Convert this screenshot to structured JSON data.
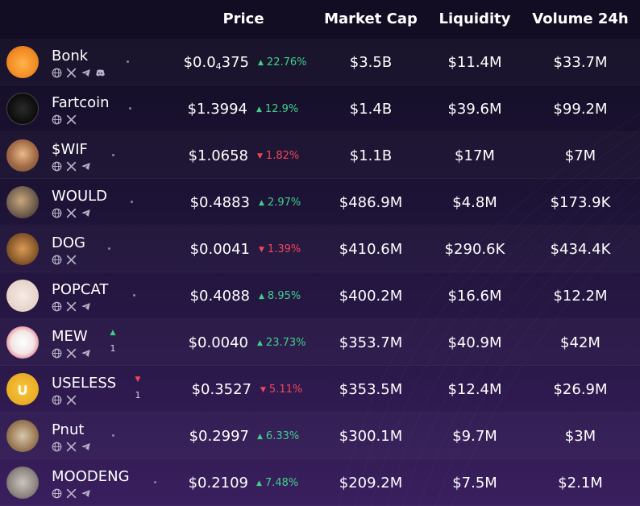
{
  "headers": {
    "price": "Price",
    "market_cap": "Market Cap",
    "liquidity": "Liquidity",
    "volume": "Volume 24h"
  },
  "colors": {
    "up": "#3fd18a",
    "down": "#f0475b",
    "bg": "#120d22"
  },
  "rows": [
    {
      "name": "Bonk",
      "price": "$0.0",
      "price_sub": "4",
      "price_rest": "375",
      "change": "22.76%",
      "dir": "up",
      "market_cap": "$3.5B",
      "liquidity": "$11.4M",
      "volume": "$33.7M",
      "socials": [
        "globe-icon",
        "x-icon",
        "telegram-icon",
        "discord-icon"
      ],
      "trend": "",
      "trend_count": ""
    },
    {
      "name": "Fartcoin",
      "price": "$1.3994",
      "price_sub": "",
      "price_rest": "",
      "change": "12.9%",
      "dir": "up",
      "market_cap": "$1.4B",
      "liquidity": "$39.6M",
      "volume": "$99.2M",
      "socials": [
        "globe-icon",
        "x-icon"
      ],
      "trend": "",
      "trend_count": ""
    },
    {
      "name": "$WIF",
      "price": "$1.0658",
      "price_sub": "",
      "price_rest": "",
      "change": "1.82%",
      "dir": "down",
      "market_cap": "$1.1B",
      "liquidity": "$17M",
      "volume": "$7M",
      "socials": [
        "globe-icon",
        "x-icon",
        "telegram-icon"
      ],
      "trend": "",
      "trend_count": ""
    },
    {
      "name": "WOULD",
      "price": "$0.4883",
      "price_sub": "",
      "price_rest": "",
      "change": "2.97%",
      "dir": "up",
      "market_cap": "$486.9M",
      "liquidity": "$4.8M",
      "volume": "$173.9K",
      "socials": [
        "globe-icon",
        "x-icon",
        "telegram-icon"
      ],
      "trend": "",
      "trend_count": ""
    },
    {
      "name": "DOG",
      "price": "$0.0041",
      "price_sub": "",
      "price_rest": "",
      "change": "1.39%",
      "dir": "down",
      "market_cap": "$410.6M",
      "liquidity": "$290.6K",
      "volume": "$434.4K",
      "socials": [
        "globe-icon",
        "x-icon"
      ],
      "trend": "",
      "trend_count": ""
    },
    {
      "name": "POPCAT",
      "price": "$0.4088",
      "price_sub": "",
      "price_rest": "",
      "change": "8.95%",
      "dir": "up",
      "market_cap": "$400.2M",
      "liquidity": "$16.6M",
      "volume": "$12.2M",
      "socials": [
        "globe-icon",
        "x-icon",
        "telegram-icon"
      ],
      "trend": "",
      "trend_count": ""
    },
    {
      "name": "MEW",
      "price": "$0.0040",
      "price_sub": "",
      "price_rest": "",
      "change": "23.73%",
      "dir": "up",
      "market_cap": "$353.7M",
      "liquidity": "$40.9M",
      "volume": "$42M",
      "socials": [
        "globe-icon",
        "x-icon",
        "telegram-icon"
      ],
      "trend": "up",
      "trend_count": "1"
    },
    {
      "name": "USELESS",
      "price": "$0.3527",
      "price_sub": "",
      "price_rest": "",
      "change": "5.11%",
      "dir": "down",
      "market_cap": "$353.5M",
      "liquidity": "$12.4M",
      "volume": "$26.9M",
      "socials": [
        "globe-icon",
        "x-icon"
      ],
      "trend": "down",
      "trend_count": "1"
    },
    {
      "name": "Pnut",
      "price": "$0.2997",
      "price_sub": "",
      "price_rest": "",
      "change": "6.33%",
      "dir": "up",
      "market_cap": "$300.1M",
      "liquidity": "$9.7M",
      "volume": "$3M",
      "socials": [
        "globe-icon",
        "x-icon",
        "telegram-icon"
      ],
      "trend": "",
      "trend_count": ""
    },
    {
      "name": "MOODENG",
      "price": "$0.2109",
      "price_sub": "",
      "price_rest": "",
      "change": "7.48%",
      "dir": "up",
      "market_cap": "$209.2M",
      "liquidity": "$7.5M",
      "volume": "$2.1M",
      "socials": [
        "globe-icon",
        "x-icon",
        "telegram-icon"
      ],
      "trend": "",
      "trend_count": ""
    }
  ]
}
